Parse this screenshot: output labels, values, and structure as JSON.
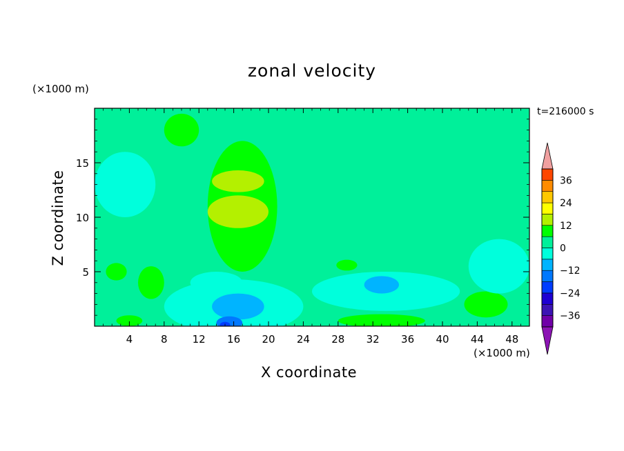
{
  "chart_data": {
    "type": "heatmap",
    "title": "zonal velocity",
    "xlabel": "X coordinate",
    "ylabel": "Z coordinate",
    "x_unit": "(×1000 m)",
    "y_unit": "(×1000 m)",
    "annotation": "t=216000 s",
    "xlim": [
      0,
      50
    ],
    "ylim": [
      0,
      20
    ],
    "x_ticks": [
      4,
      8,
      12,
      16,
      20,
      24,
      28,
      32,
      36,
      40,
      44,
      48
    ],
    "y_ticks": [
      5,
      10,
      15
    ],
    "colorbar": {
      "levels": [
        -42,
        -36,
        -30,
        -24,
        -18,
        -12,
        -6,
        0,
        6,
        12,
        18,
        24,
        30,
        36,
        42
      ],
      "tick_labels": [
        "36",
        "24",
        "12",
        "0",
        "−12",
        "−24",
        "−36"
      ],
      "tick_values": [
        36,
        24,
        12,
        0,
        -12,
        -24,
        -36
      ],
      "colors": [
        "#7000a8",
        "#3c14b4",
        "#1e00d2",
        "#003cff",
        "#0078ff",
        "#00b4ff",
        "#00ffdc",
        "#00f09a",
        "#00ff00",
        "#b4f000",
        "#ffff00",
        "#ffc800",
        "#ff8c00",
        "#ff4600",
        "#ff0000"
      ],
      "over_color": "#f0a0a0",
      "under_color": "#8c14b4",
      "extend": "both"
    },
    "regions": [
      {
        "level": 0,
        "x": 0,
        "y": 0,
        "rx": 0,
        "ry": 0
      },
      {
        "level": 6,
        "x": 17,
        "y": 11,
        "rx": 4,
        "ry": 6
      },
      {
        "level": 6,
        "x": 10,
        "y": 18,
        "rx": 2,
        "ry": 1.5
      },
      {
        "level": 12,
        "x": 16.5,
        "y": 10.5,
        "rx": 3.5,
        "ry": 1.5
      },
      {
        "level": 12,
        "x": 16.5,
        "y": 13.3,
        "rx": 3,
        "ry": 1
      },
      {
        "level": 6,
        "x": 6.5,
        "y": 4,
        "rx": 1.5,
        "ry": 1.5
      },
      {
        "level": 6,
        "x": 2.5,
        "y": 5,
        "rx": 1.2,
        "ry": 0.8
      },
      {
        "level": 6,
        "x": 29,
        "y": 5.6,
        "rx": 1.2,
        "ry": 0.5
      },
      {
        "level": 6,
        "x": 33,
        "y": 0.5,
        "rx": 5,
        "ry": 0.6
      },
      {
        "level": 6,
        "x": 45,
        "y": 2,
        "rx": 2.5,
        "ry": 1.2
      },
      {
        "level": 6,
        "x": 4,
        "y": 0.5,
        "rx": 1.5,
        "ry": 0.5
      },
      {
        "level": -6,
        "x": 3.5,
        "y": 13,
        "rx": 3.5,
        "ry": 3
      },
      {
        "level": -6,
        "x": 16,
        "y": 1.8,
        "rx": 8,
        "ry": 2.5
      },
      {
        "level": -6,
        "x": 33.5,
        "y": 3.2,
        "rx": 8.5,
        "ry": 1.8
      },
      {
        "level": -6,
        "x": 46.5,
        "y": 5.5,
        "rx": 3.5,
        "ry": 2.5
      },
      {
        "level": -6,
        "x": 14,
        "y": 4,
        "rx": 3,
        "ry": 1
      },
      {
        "level": -12,
        "x": 16.5,
        "y": 1.8,
        "rx": 3,
        "ry": 1.2
      },
      {
        "level": -12,
        "x": 33,
        "y": 3.8,
        "rx": 2,
        "ry": 0.8
      },
      {
        "level": -18,
        "x": 15.5,
        "y": 0.3,
        "rx": 1.5,
        "ry": 0.6
      },
      {
        "level": -24,
        "x": 15,
        "y": 0.1,
        "rx": 0.6,
        "ry": 0.3
      }
    ]
  }
}
